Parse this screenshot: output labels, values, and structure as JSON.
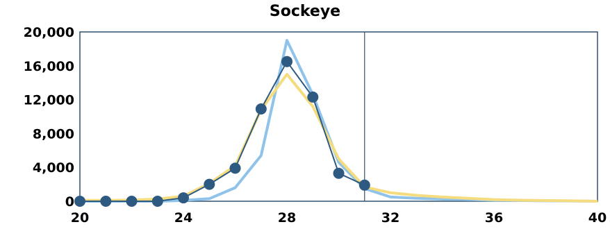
{
  "chart_data": {
    "type": "line",
    "title": "Sockeye",
    "xlabel": "",
    "ylabel": "",
    "xlim": [
      20,
      40
    ],
    "ylim": [
      0,
      20000
    ],
    "x_ticks": [
      20,
      24,
      28,
      32,
      36,
      40
    ],
    "x_tick_labels": [
      "20",
      "24",
      "28",
      "32",
      "36",
      "40"
    ],
    "y_ticks": [
      0,
      4000,
      8000,
      12000,
      16000,
      20000
    ],
    "y_tick_labels": [
      "0",
      "4,000",
      "8,000",
      "12,000",
      "16,000",
      "20,000"
    ],
    "grid": false,
    "legend": "none",
    "reference_line_x": 31,
    "series": [
      {
        "color": "#8fc3ea",
        "marker": "none",
        "x": [
          20,
          21,
          22,
          23,
          24,
          25,
          26,
          27,
          28,
          29,
          30,
          31,
          32,
          33,
          34,
          35,
          36,
          37,
          38,
          39,
          40
        ],
        "y": [
          0,
          0,
          0,
          0,
          100,
          300,
          1600,
          5400,
          19000,
          12600,
          4600,
          1500,
          500,
          350,
          250,
          200,
          120,
          80,
          50,
          30,
          0
        ]
      },
      {
        "color": "#f5dc7e",
        "marker": "none",
        "x": [
          20,
          21,
          22,
          23,
          24,
          25,
          26,
          27,
          28,
          29,
          30,
          31,
          32,
          33,
          34,
          35,
          36,
          37,
          38,
          39,
          40
        ],
        "y": [
          100,
          100,
          150,
          250,
          600,
          2100,
          4200,
          10800,
          15000,
          11200,
          5000,
          1700,
          1000,
          700,
          500,
          350,
          200,
          120,
          80,
          50,
          0
        ]
      },
      {
        "color": "#2e5a82",
        "marker": "circle",
        "x": [
          20,
          21,
          22,
          23,
          24,
          25,
          26,
          27,
          28,
          29,
          30,
          31
        ],
        "y": [
          0,
          0,
          0,
          0,
          400,
          2000,
          3900,
          10900,
          16500,
          12300,
          3300,
          1900
        ]
      }
    ]
  }
}
